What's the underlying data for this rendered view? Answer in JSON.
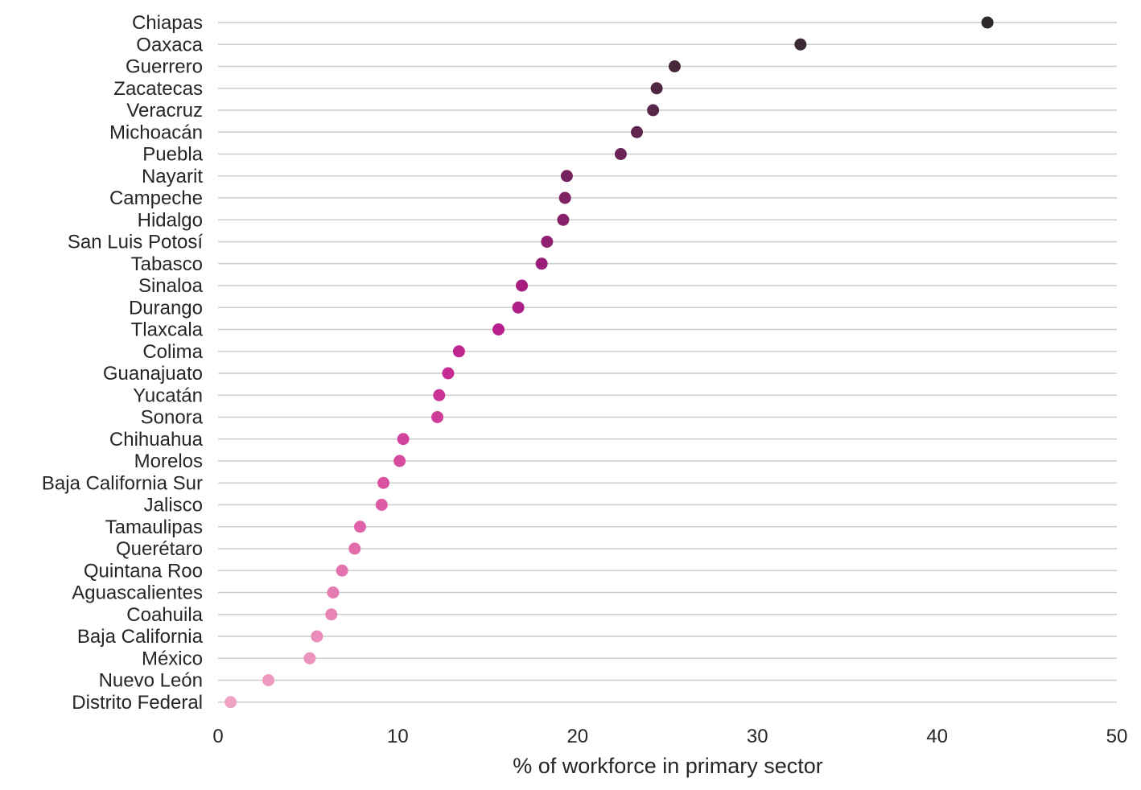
{
  "chart_data": {
    "type": "scatter",
    "orientation": "horizontal-dot",
    "xlabel": "% of workforce in primary sector",
    "ylabel": "",
    "xlim": [
      0,
      50
    ],
    "xticks": [
      0,
      10,
      20,
      30,
      40,
      50
    ],
    "grid": "horizontal",
    "legend": "none",
    "categories": [
      "Chiapas",
      "Oaxaca",
      "Guerrero",
      "Zacatecas",
      "Veracruz",
      "Michoacán",
      "Puebla",
      "Nayarit",
      "Campeche",
      "Hidalgo",
      "San Luis Potosí",
      "Tabasco",
      "Sinaloa",
      "Durango",
      "Tlaxcala",
      "Colima",
      "Guanajuato",
      "Yucatán",
      "Sonora",
      "Chihuahua",
      "Morelos",
      "Baja California Sur",
      "Jalisco",
      "Tamaulipas",
      "Querétaro",
      "Quintana Roo",
      "Aguascalientes",
      "Coahuila",
      "Baja California",
      "México",
      "Nuevo León",
      "Distrito Federal"
    ],
    "values": [
      42.8,
      32.4,
      25.4,
      24.4,
      24.2,
      23.3,
      22.4,
      19.4,
      19.3,
      19.2,
      18.3,
      18.0,
      16.9,
      16.7,
      15.6,
      13.4,
      12.8,
      12.3,
      12.2,
      10.3,
      10.1,
      9.2,
      9.1,
      7.9,
      7.6,
      6.9,
      6.4,
      6.3,
      5.5,
      5.1,
      2.8,
      0.7
    ],
    "colors": [
      "#2e2a2c",
      "#3b2933",
      "#46283a",
      "#4f2742",
      "#582649",
      "#612550",
      "#6a2457",
      "#75235e",
      "#7e2264",
      "#87216b",
      "#912072",
      "#9b1f79",
      "#a51e80",
      "#ae1e86",
      "#b81e8c",
      "#c0248f",
      "#c52b92",
      "#ca3395",
      "#ce3b98",
      "#d2439b",
      "#d64b9e",
      "#d953a1",
      "#dc5ba4",
      "#df63a8",
      "#e16bab",
      "#e373af",
      "#e57bb3",
      "#e883b6",
      "#ea8bb9",
      "#ec93bd",
      "#ee9ac0",
      "#f0a2c3"
    ]
  }
}
